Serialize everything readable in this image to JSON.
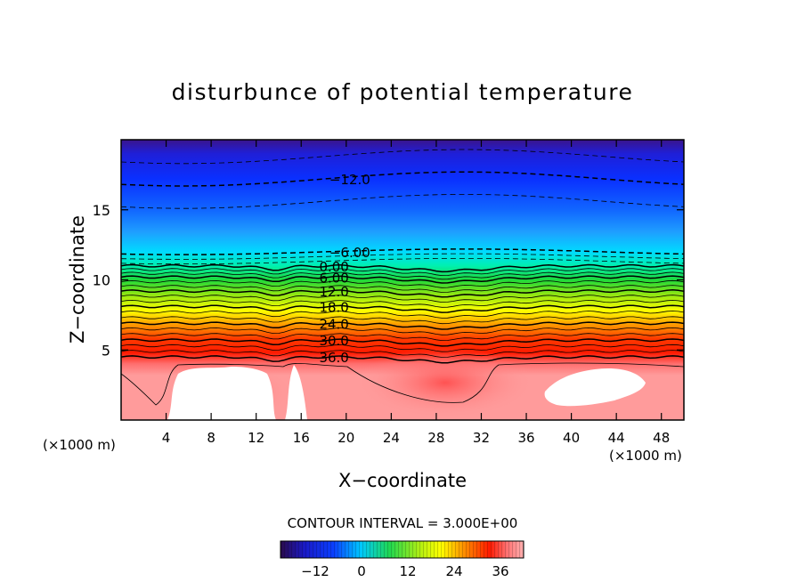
{
  "chart_data": {
    "type": "heatmap",
    "title": "disturbunce of potential temperature",
    "xlabel": "X−coordinate",
    "ylabel": "Z−coordinate",
    "x_unit_left": "(×1000 m)",
    "x_unit_right": "(×1000 m)",
    "xlim": [
      0,
      50
    ],
    "ylim": [
      0,
      20
    ],
    "x_ticks": [
      4,
      8,
      12,
      16,
      20,
      24,
      28,
      32,
      36,
      40,
      44,
      48
    ],
    "x_tick_labels": [
      "4",
      "8",
      "12",
      "16",
      "20",
      "24",
      "28",
      "32",
      "36",
      "40",
      "44",
      "48"
    ],
    "y_ticks": [
      5,
      10,
      15
    ],
    "y_tick_labels": [
      "5",
      "10",
      "15"
    ],
    "contour_interval_text": "CONTOUR INTERVAL = 3.000E+00",
    "contour_labels": [
      {
        "text": "−12.0",
        "x": 18.5,
        "z": 17.2,
        "value": -12
      },
      {
        "text": "−6.00",
        "x": 18.5,
        "z": 12.0,
        "value": -6
      },
      {
        "text": "0.00",
        "x": 17.6,
        "z": 11.0,
        "value": 0
      },
      {
        "text": "6.00",
        "x": 17.6,
        "z": 10.2,
        "value": 6
      },
      {
        "text": "12.0",
        "x": 17.6,
        "z": 9.2,
        "value": 12
      },
      {
        "text": "18.0",
        "x": 17.6,
        "z": 8.1,
        "value": 18
      },
      {
        "text": "24.0",
        "x": 17.6,
        "z": 6.9,
        "value": 24
      },
      {
        "text": "30.0",
        "x": 17.6,
        "z": 5.7,
        "value": 30
      },
      {
        "text": "36.0",
        "x": 17.6,
        "z": 4.5,
        "value": 36
      }
    ],
    "colorbar": {
      "min": -21,
      "max": 42,
      "ticks": [
        -12,
        0,
        12,
        24,
        36
      ],
      "tick_labels": [
        "−12",
        "0",
        "12",
        "24",
        "36"
      ]
    },
    "colors": {
      "violet": "#5a1f8f",
      "blue": "#0a2dff",
      "cyan": "#00e8ff",
      "green": "#22dd22",
      "yellow": "#ffff00",
      "red": "#ff1a00",
      "pink": "#ff9b9b"
    }
  }
}
